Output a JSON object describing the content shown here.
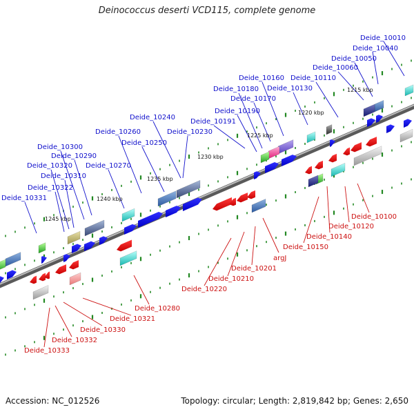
{
  "title": "Deinococcus deserti VCD115, complete genome",
  "footer": {
    "accession": "Accession: NC_012526",
    "summary": "Topology: circular; Length: 2,819,842 bp; Genes: 2,650"
  },
  "colors": {
    "forward_label": "#1010cc",
    "reverse_label": "#cc1010",
    "forward_arrow": "#0000ee",
    "reverse_arrow": "#ee0000",
    "backbone": "#777777",
    "tick": "#228822"
  },
  "scale_labels": [
    "1215 kbp",
    "1220 kbp",
    "1225 kbp",
    "1230 kbp",
    "1235 kbp",
    "1240 kbp",
    "1245 kbp"
  ],
  "forward_genes": [
    "Deide_10010",
    "Deide_10040",
    "Deide_10050",
    "Deide_10060",
    "Deide_10110",
    "Deide_10130",
    "Deide_10160",
    "Deide_10170",
    "Deide_10180",
    "Deide_10190",
    "Deide_10191",
    "Deide_10230",
    "Deide_10240",
    "Deide_10250",
    "Deide_10260",
    "Deide_10270",
    "Deide_10290",
    "Deide_10300",
    "Deide_10310",
    "Deide_10320",
    "Deide_10322",
    "Deide_10331"
  ],
  "reverse_genes": [
    "Deide_10100",
    "Deide_10120",
    "Deide_10140",
    "Deide_10150",
    "argJ",
    "Deide_10201",
    "Deide_10210",
    "Deide_10220",
    "Deide_10280",
    "Deide_10321",
    "Deide_10330",
    "Deide_10332",
    "Deide_10333"
  ]
}
